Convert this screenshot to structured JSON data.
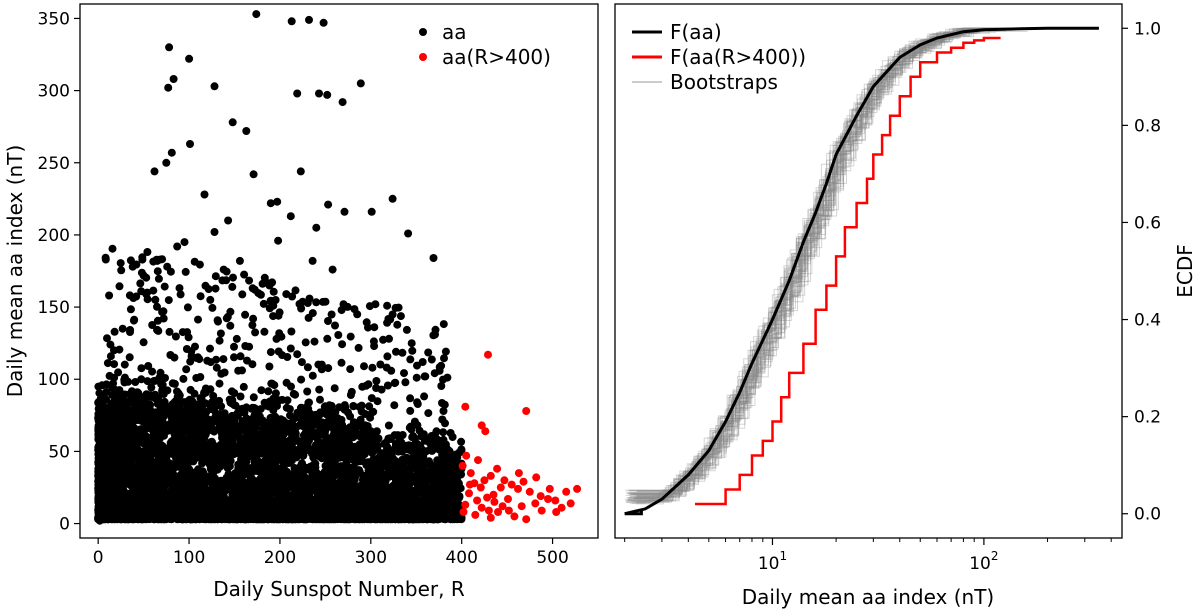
{
  "chart_data": [
    {
      "type": "scatter",
      "xlabel": "Daily Sunspot Number, R",
      "ylabel": "Daily mean aa index (nT)",
      "xlim": [
        -20,
        550
      ],
      "ylim": [
        -10,
        360
      ],
      "xticks": [
        0,
        100,
        200,
        300,
        400,
        500
      ],
      "yticks": [
        0,
        50,
        100,
        150,
        200,
        250,
        300,
        350
      ],
      "legend_position": "top-right",
      "grid": false,
      "series": [
        {
          "name": "aa",
          "color": "#000000",
          "description_points": [
            [
              78,
              330
            ],
            [
              100,
              322
            ],
            [
              83,
              308
            ],
            [
              77,
              302
            ],
            [
              128,
              303
            ],
            [
              174,
              353
            ],
            [
              213,
              348
            ],
            [
              232,
              349
            ],
            [
              248,
              347
            ],
            [
              219,
              298
            ],
            [
              243,
              298
            ],
            [
              252,
              297
            ],
            [
              289,
              305
            ],
            [
              269,
              292
            ],
            [
              101,
              263
            ],
            [
              81,
              257
            ],
            [
              75,
              250
            ],
            [
              62,
              244
            ],
            [
              148,
              278
            ],
            [
              163,
              272
            ],
            [
              171,
              242
            ],
            [
              190,
              222
            ],
            [
              197,
              223
            ],
            [
              212,
              213
            ],
            [
              223,
              244
            ],
            [
              240,
              205
            ],
            [
              253,
              221
            ],
            [
              271,
              216
            ],
            [
              301,
              216
            ],
            [
              324,
              225
            ],
            [
              341,
              201
            ],
            [
              369,
              184
            ],
            [
              128,
              202
            ],
            [
              117,
              228
            ],
            [
              95,
              195
            ],
            [
              87,
              192
            ],
            [
              65,
              182
            ],
            [
              76,
              178
            ],
            [
              38,
              178
            ],
            [
              12,
              158
            ],
            [
              27,
              135
            ],
            [
              54,
              160
            ],
            [
              143,
              210
            ],
            [
              156,
              182
            ],
            [
              170,
              163
            ],
            [
              198,
              196
            ],
            [
              207,
              159
            ],
            [
              236,
              182
            ],
            [
              258,
              176
            ],
            [
              270,
              152
            ],
            [
              285,
              145
            ],
            [
              305,
              152
            ],
            [
              320,
              128
            ],
            [
              345,
              125
            ],
            [
              360,
              102
            ],
            [
              380,
              78
            ],
            [
              390,
              60
            ]
          ]
        },
        {
          "name": "aa(R>400)",
          "color": "#ff0000",
          "points": [
            [
              429,
              117
            ],
            [
              404,
              81
            ],
            [
              471,
              78
            ],
            [
              422,
              68
            ],
            [
              426,
              64
            ],
            [
              405,
              47
            ],
            [
              418,
              44
            ],
            [
              401,
              40
            ],
            [
              410,
              35
            ],
            [
              432,
              33
            ],
            [
              439,
              38
            ],
            [
              447,
              30
            ],
            [
              455,
              27
            ],
            [
              462,
              24
            ],
            [
              468,
              29
            ],
            [
              475,
              22
            ],
            [
              482,
              32
            ],
            [
              487,
              19
            ],
            [
              495,
              17
            ],
            [
              503,
              16
            ],
            [
              515,
              22
            ],
            [
              527,
              24
            ],
            [
              414,
              28
            ],
            [
              421,
              25
            ],
            [
              408,
              21
            ],
            [
              428,
              18
            ],
            [
              436,
              15
            ],
            [
              445,
              12
            ],
            [
              452,
              9
            ],
            [
              440,
              8
            ],
            [
              422,
              11
            ],
            [
              404,
              13
            ],
            [
              415,
              6
            ],
            [
              432,
              4
            ],
            [
              458,
              5
            ],
            [
              466,
              12
            ],
            [
              488,
              9
            ],
            [
              510,
              11
            ],
            [
              471,
              3
            ],
            [
              425,
              30
            ],
            [
              409,
              27
            ],
            [
              417,
              16
            ],
            [
              402,
              8
            ],
            [
              435,
              20
            ],
            [
              451,
              17
            ],
            [
              463,
              35
            ],
            [
              481,
              14
            ],
            [
              497,
              24
            ],
            [
              504,
              8
            ],
            [
              520,
              14
            ],
            [
              443,
              25
            ],
            [
              430,
              9
            ]
          ]
        }
      ]
    },
    {
      "type": "line",
      "xlabel": "Daily mean aa index (nT)",
      "ylabel": "ECDF",
      "xscale": "log",
      "xlim": [
        1.8,
        450
      ],
      "ylim": [
        -0.05,
        1.05
      ],
      "yticks": [
        0.0,
        0.2,
        0.4,
        0.6,
        0.8,
        1.0
      ],
      "xticks": [
        10,
        100
      ],
      "xtick_labels": [
        {
          "base": "10",
          "exp": "1"
        },
        {
          "base": "10",
          "exp": "2"
        }
      ],
      "legend_position": "top-left",
      "grid": false,
      "series": [
        {
          "name": "F(aa)",
          "color": "#000000",
          "x": [
            2,
            2.5,
            3,
            4,
            5,
            6,
            7,
            8,
            10,
            12,
            14,
            16,
            18,
            20,
            25,
            30,
            40,
            50,
            60,
            80,
            100,
            150,
            200,
            300,
            350
          ],
          "y": [
            0.0,
            0.01,
            0.03,
            0.08,
            0.13,
            0.19,
            0.25,
            0.31,
            0.4,
            0.48,
            0.56,
            0.62,
            0.68,
            0.74,
            0.82,
            0.88,
            0.94,
            0.966,
            0.98,
            0.993,
            0.997,
            0.999,
            1.0,
            1.0,
            1.0
          ]
        },
        {
          "name": "F(aa(R>400))",
          "color": "#ff0000",
          "x": [
            4.3,
            6,
            7,
            8,
            9,
            10,
            11,
            12,
            14,
            16,
            18,
            20,
            22,
            25,
            28,
            30,
            33,
            36,
            40,
            45,
            50,
            60,
            70,
            80,
            90,
            100,
            120
          ],
          "y": [
            0.02,
            0.05,
            0.08,
            0.12,
            0.15,
            0.19,
            0.24,
            0.29,
            0.35,
            0.42,
            0.47,
            0.53,
            0.59,
            0.64,
            0.69,
            0.74,
            0.78,
            0.82,
            0.86,
            0.9,
            0.93,
            0.95,
            0.96,
            0.97,
            0.975,
            0.98,
            0.98
          ]
        },
        {
          "name": "Bootstraps",
          "color": "#999999"
        }
      ]
    }
  ]
}
